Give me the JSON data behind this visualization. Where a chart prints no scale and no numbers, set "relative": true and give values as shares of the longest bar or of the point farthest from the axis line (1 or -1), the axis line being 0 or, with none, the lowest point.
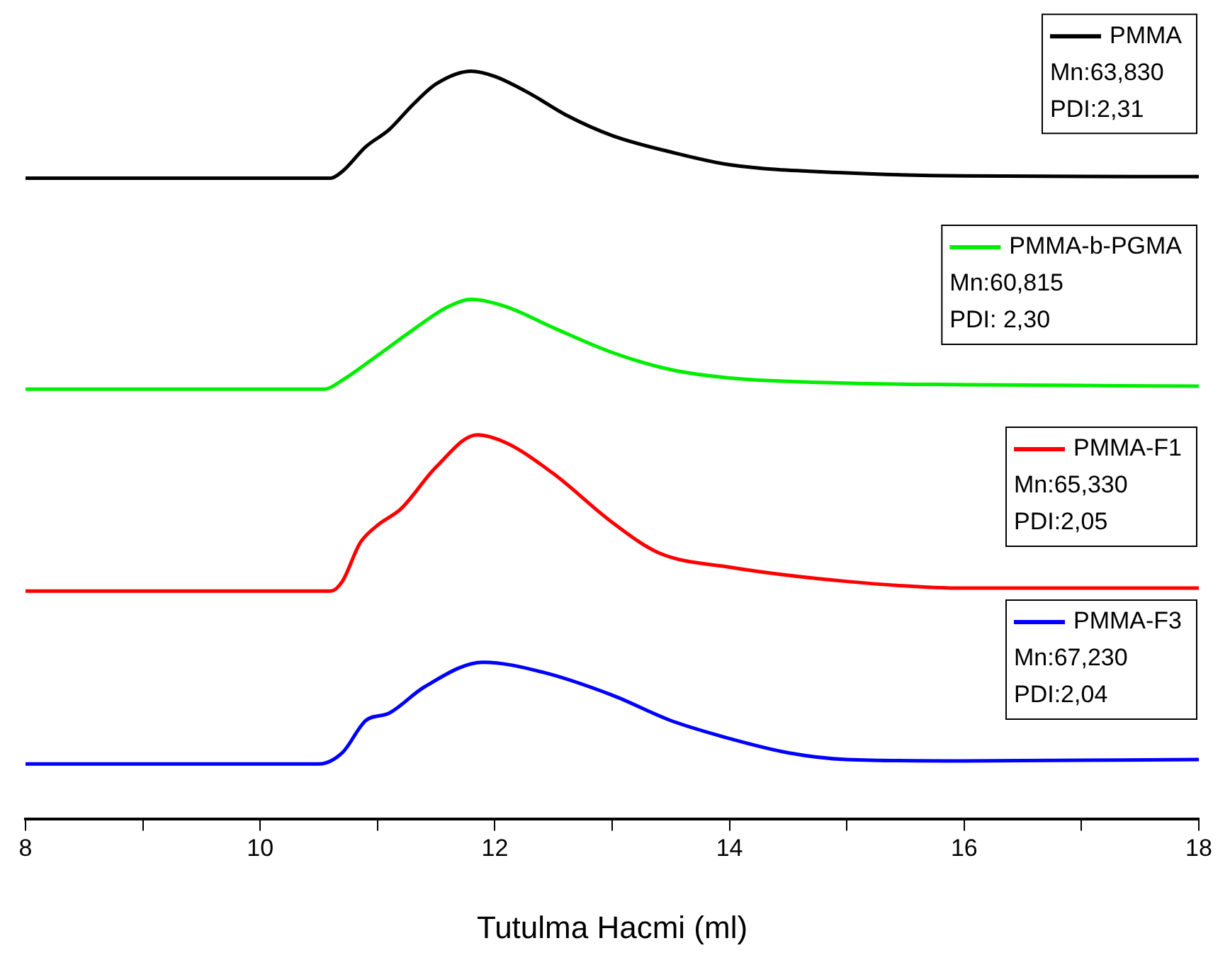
{
  "chart_data": {
    "type": "line",
    "relative": true,
    "xlabel": "Tutulma Hacmi (ml)",
    "xlim": [
      8,
      18
    ],
    "xticks": [
      8,
      {
        "value": 9,
        "label": null
      },
      10,
      {
        "value": 11,
        "label": null
      },
      12,
      {
        "value": 13,
        "label": null
      },
      14,
      {
        "value": 15,
        "label": null
      },
      16,
      {
        "value": 17,
        "label": null
      },
      18
    ],
    "legend": "right",
    "tick_labels": "x",
    "grid": false,
    "marker": "none",
    "line_style": "solid",
    "annotations": [
      "Mn:63,830",
      "PDI:2,31",
      "Mn:60,815",
      "PDI: 2,30",
      "Mn:65,330",
      "PDI:2,05",
      "Mn:67,230",
      "PDI:2,04"
    ],
    "series": [
      {
        "name": "PMMA",
        "color": "#000000",
        "x": [
          8,
          10.6,
          10.7,
          10.9,
          11.1,
          11.3,
          11.5,
          11.8,
          12.0,
          12.3,
          12.6,
          13.0,
          13.5,
          14,
          15,
          16,
          18
        ],
        "values": [
          0.857,
          0.857,
          0.866,
          0.899,
          0.922,
          0.955,
          0.983,
          1,
          0.993,
          0.97,
          0.942,
          0.914,
          0.892,
          0.875,
          0.864,
          0.86,
          0.859
        ]
      },
      {
        "name": "PMMA-b-PGMA",
        "color": "#00ee00",
        "x": [
          8,
          10.55,
          10.7,
          11.0,
          11.3,
          11.6,
          11.8,
          12.1,
          12.5,
          13.0,
          13.5,
          14,
          15,
          16,
          18
        ],
        "values": [
          0.575,
          0.575,
          0.587,
          0.62,
          0.654,
          0.685,
          0.695,
          0.685,
          0.657,
          0.624,
          0.601,
          0.59,
          0.583,
          0.581,
          0.579
        ]
      },
      {
        "name": "PMMA-F1",
        "color": "#ff0000",
        "x": [
          8,
          10.6,
          10.7,
          10.85,
          11.0,
          11.2,
          11.5,
          11.85,
          12.1,
          12.5,
          13.0,
          13.4,
          14,
          15,
          16,
          18
        ],
        "values": [
          0.305,
          0.305,
          0.318,
          0.369,
          0.393,
          0.415,
          0.471,
          0.514,
          0.503,
          0.462,
          0.397,
          0.356,
          0.337,
          0.318,
          0.309,
          0.309
        ]
      },
      {
        "name": "PMMA-F3",
        "color": "#0000ff",
        "x": [
          8,
          10.5,
          10.7,
          10.9,
          11.1,
          11.4,
          11.9,
          12.4,
          13.0,
          13.5,
          14,
          14.5,
          15,
          16,
          18
        ],
        "values": [
          0.074,
          0.074,
          0.089,
          0.132,
          0.142,
          0.177,
          0.21,
          0.197,
          0.166,
          0.132,
          0.108,
          0.089,
          0.08,
          0.078,
          0.08
        ]
      }
    ]
  }
}
